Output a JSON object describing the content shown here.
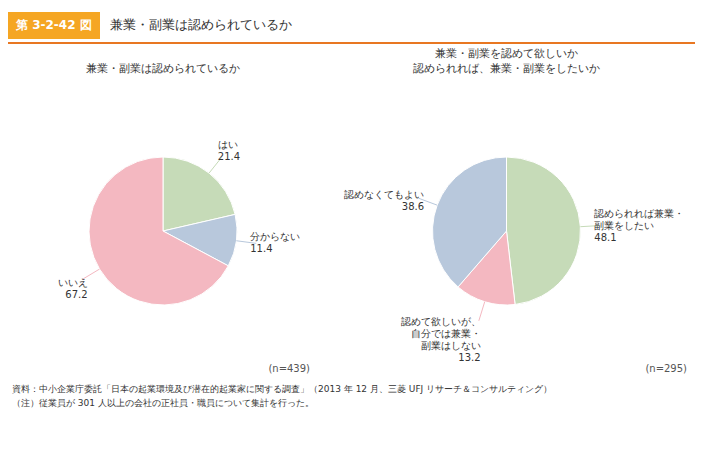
{
  "title": "兼業・副業は認められているか",
  "annotations": [
    "第 3-2-42 図",
    "資料：中小企業庁委託「日本の起業環境及び潜在的起業家に関する調査」（2013 年 12 月、三菱 UFJ リサーチ＆コンサルティング）",
    "（注）従業員が 301 人以上の会社の正社員・職員について集計を行った。"
  ],
  "chart_data": [
    {
      "type": "pie",
      "title": "兼業・副業は認められているか",
      "categories": [
        "はい",
        "分からない",
        "いいえ"
      ],
      "values": [
        21.4,
        11.4,
        67.2
      ],
      "colors": [
        "#c6dbb8",
        "#b8c8dc",
        "#f4b8c1"
      ],
      "data_labels": true,
      "annotations": [
        "(n=439)"
      ]
    },
    {
      "type": "pie",
      "title": "兼業・副業を認めて欲しいか\n認められれば、兼業・副業をしたいか",
      "categories": [
        "認められれば兼業・\n副業をしたい",
        "認めて欲しいが、\n自分では兼業・\n副業はしない",
        "認めなくてもよい"
      ],
      "values": [
        48.1,
        13.2,
        38.6
      ],
      "colors": [
        "#c6dbb8",
        "#f4b8c1",
        "#b8c8dc"
      ],
      "data_labels": true,
      "annotations": [
        "(n=295)"
      ]
    }
  ]
}
